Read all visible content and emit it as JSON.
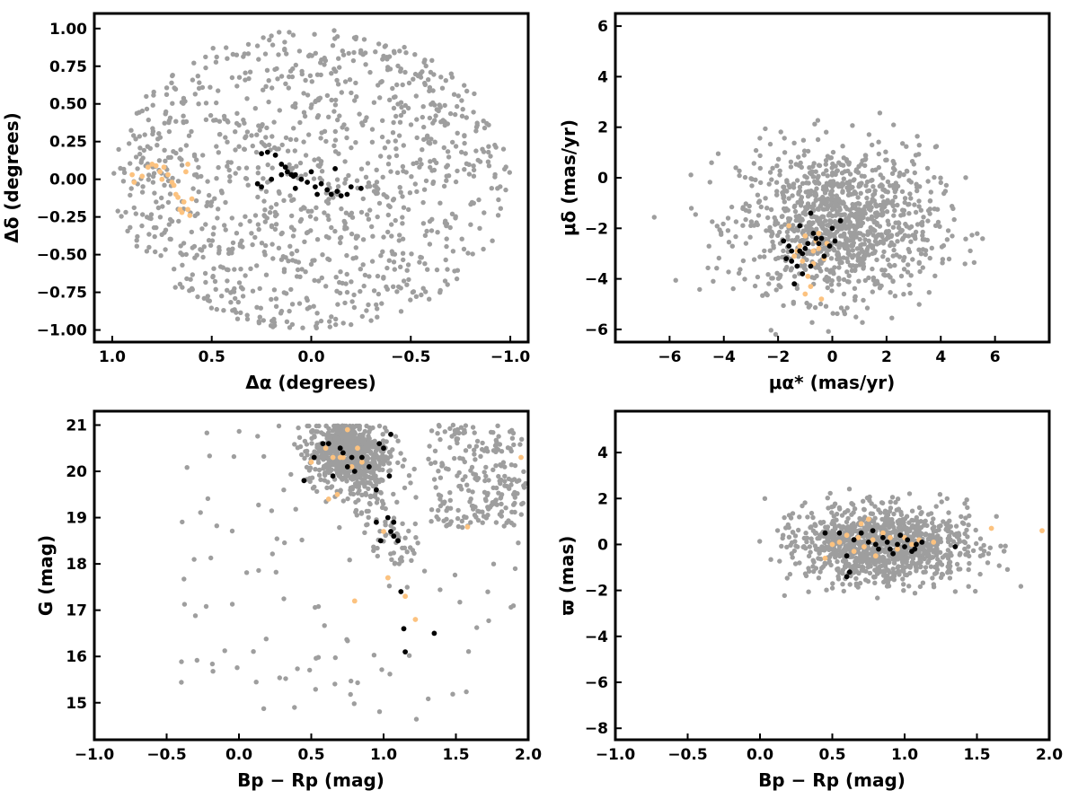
{
  "figure": {
    "colors": {
      "field": "#9e9e9e",
      "members": "#000000",
      "other": "#fcc27f"
    }
  },
  "chart_data": [
    {
      "id": "spatial",
      "type": "scatter",
      "xlabel": "Δα (degrees)",
      "ylabel": "Δδ (degrees)",
      "xlim": [
        1.09,
        -1.09
      ],
      "ylim": [
        -1.08,
        1.1
      ],
      "x_ticks": [
        1.0,
        0.5,
        0.0,
        -0.5,
        -1.0
      ],
      "x_tick_labels": [
        "1.0",
        "0.5",
        "0.0",
        "−0.5",
        "−1.0"
      ],
      "y_ticks": [
        1.0,
        0.75,
        0.5,
        0.25,
        0.0,
        -0.25,
        -0.5,
        -0.75,
        -1.0
      ],
      "y_tick_labels": [
        "1.00",
        "0.75",
        "0.50",
        "0.25",
        "0.00",
        "−0.25",
        "−0.50",
        "−0.75",
        "−1.00"
      ],
      "grid": false,
      "field_distribution": {
        "shape": "disk",
        "center": [
          0,
          0
        ],
        "radius": 1.0,
        "count": 1100
      },
      "series": [
        {
          "role": "members",
          "points": [
            [
              0.25,
              0.17
            ],
            [
              0.22,
              0.18
            ],
            [
              0.18,
              0.16
            ],
            [
              0.15,
              0.1
            ],
            [
              0.13,
              0.08
            ],
            [
              0.12,
              0.05
            ],
            [
              0.1,
              0.03
            ],
            [
              0.09,
              0.02
            ],
            [
              0.08,
              0.03
            ],
            [
              0.05,
              0.0
            ],
            [
              0.02,
              -0.02
            ],
            [
              -0.02,
              -0.05
            ],
            [
              -0.05,
              -0.03
            ],
            [
              -0.08,
              -0.07
            ],
            [
              -0.1,
              -0.1
            ],
            [
              -0.13,
              -0.08
            ],
            [
              -0.15,
              -0.11
            ],
            [
              -0.2,
              -0.05
            ],
            [
              -0.25,
              -0.06
            ],
            [
              0.27,
              -0.03
            ],
            [
              0.25,
              -0.05
            ],
            [
              0.08,
              -0.06
            ],
            [
              -0.03,
              -0.1
            ],
            [
              -0.12,
              0.07
            ],
            [
              0.0,
              0.05
            ],
            [
              0.2,
              0.0
            ],
            [
              0.15,
              0.03
            ],
            [
              -0.18,
              -0.1
            ]
          ]
        },
        {
          "role": "other",
          "points": [
            [
              0.9,
              0.03
            ],
            [
              0.89,
              -0.02
            ],
            [
              0.85,
              0.02
            ],
            [
              0.8,
              0.1
            ],
            [
              0.78,
              0.09
            ],
            [
              0.76,
              0.05
            ],
            [
              0.74,
              0.08
            ],
            [
              0.72,
              0.03
            ],
            [
              0.7,
              -0.02
            ],
            [
              0.69,
              -0.04
            ],
            [
              0.68,
              -0.1
            ],
            [
              0.67,
              -0.12
            ],
            [
              0.66,
              -0.2
            ],
            [
              0.65,
              -0.22
            ],
            [
              0.64,
              -0.15
            ],
            [
              0.62,
              -0.2
            ],
            [
              0.61,
              -0.24
            ],
            [
              0.6,
              -0.13
            ],
            [
              0.62,
              0.1
            ],
            [
              0.63,
              0.05
            ],
            [
              0.75,
              0.0
            ],
            [
              0.82,
              0.08
            ]
          ]
        }
      ]
    },
    {
      "id": "proper-motion",
      "type": "scatter",
      "xlabel": "μα* (mas/yr)",
      "ylabel": "μδ (mas/yr)",
      "xlim": [
        -8,
        8
      ],
      "ylim": [
        -6.5,
        6.5
      ],
      "x_ticks": [
        -6,
        -4,
        -2,
        0,
        2,
        4,
        6
      ],
      "x_tick_labels": [
        "−6",
        "−4",
        "−2",
        "0",
        "2",
        "4",
        "6"
      ],
      "y_ticks": [
        6,
        4,
        2,
        0,
        -2,
        -4,
        -6
      ],
      "y_tick_labels": [
        "6",
        "4",
        "2",
        "0",
        "−2",
        "−4",
        "−6"
      ],
      "grid": false,
      "field_distribution": {
        "shape": "blob",
        "center": [
          0.2,
          -1.8
        ],
        "spread": [
          1.8,
          1.5
        ],
        "count": 1100
      },
      "series": [
        {
          "role": "members",
          "points": [
            [
              -1.8,
              -2.5
            ],
            [
              -1.6,
              -2.7
            ],
            [
              -1.5,
              -3.3
            ],
            [
              -1.3,
              -3.5
            ],
            [
              -1.2,
              -2.9
            ],
            [
              -1.1,
              -3.0
            ],
            [
              -1.0,
              -2.8
            ],
            [
              -0.9,
              -2.6
            ],
            [
              -0.8,
              -1.4
            ],
            [
              -0.7,
              -2.2
            ],
            [
              -0.6,
              -2.4
            ],
            [
              -0.5,
              -2.6
            ],
            [
              -0.4,
              -2.4
            ],
            [
              -0.3,
              -3.1
            ],
            [
              -0.1,
              -2.7
            ],
            [
              0.1,
              -2.5
            ],
            [
              0.3,
              -1.7
            ],
            [
              0.0,
              -2.0
            ],
            [
              -1.4,
              -4.2
            ],
            [
              -1.1,
              -3.8
            ],
            [
              -1.7,
              -3.2
            ],
            [
              -1.2,
              -1.9
            ],
            [
              -0.8,
              -3.5
            ],
            [
              -1.5,
              -2.9
            ]
          ]
        },
        {
          "role": "other",
          "points": [
            [
              -1.6,
              -1.9
            ],
            [
              -1.3,
              -2.9
            ],
            [
              -1.1,
              -3.3
            ],
            [
              -1.0,
              -2.3
            ],
            [
              -0.9,
              -3.9
            ],
            [
              -0.8,
              -4.3
            ],
            [
              -0.7,
              -2.9
            ],
            [
              -0.6,
              -2.5
            ],
            [
              -0.5,
              -2.2
            ],
            [
              -0.4,
              -4.8
            ],
            [
              -0.3,
              -3.2
            ],
            [
              -0.2,
              -2.6
            ],
            [
              -1.2,
              -2.7
            ],
            [
              -0.7,
              -3.4
            ],
            [
              -1.4,
              -3.1
            ],
            [
              -0.5,
              -2.8
            ],
            [
              -1.0,
              -4.6
            ]
          ]
        }
      ]
    },
    {
      "id": "cmd",
      "type": "scatter",
      "xlabel": "Bp − Rp (mag)",
      "ylabel": "G (mag)",
      "xlim": [
        -1.0,
        2.0
      ],
      "ylim": [
        14.2,
        21.3
      ],
      "x_ticks": [
        -1.0,
        -0.5,
        0.0,
        0.5,
        1.0,
        1.5,
        2.0
      ],
      "x_tick_labels": [
        "−1.0",
        "−0.5",
        "0.0",
        "0.5",
        "1.0",
        "1.5",
        "2.0"
      ],
      "y_ticks": [
        21,
        20,
        19,
        18,
        17,
        16,
        15
      ],
      "y_tick_labels": [
        "21",
        "20",
        "19",
        "18",
        "17",
        "16",
        "15"
      ],
      "grid": false,
      "field_distribution": {
        "shape": "cmd",
        "turnoff": [
          0.75,
          20.4
        ],
        "count": 1100
      },
      "series": [
        {
          "role": "members",
          "points": [
            [
              0.45,
              19.8
            ],
            [
              0.52,
              20.3
            ],
            [
              0.58,
              20.6
            ],
            [
              0.62,
              20.6
            ],
            [
              0.65,
              19.9
            ],
            [
              0.7,
              20.5
            ],
            [
              0.72,
              20.4
            ],
            [
              0.75,
              20.1
            ],
            [
              0.78,
              20.3
            ],
            [
              0.8,
              20.0
            ],
            [
              0.85,
              20.3
            ],
            [
              0.9,
              20.1
            ],
            [
              0.95,
              19.6
            ],
            [
              0.97,
              20.6
            ],
            [
              1.0,
              20.5
            ],
            [
              1.04,
              19.9
            ],
            [
              1.05,
              20.8
            ],
            [
              0.95,
              18.9
            ],
            [
              0.98,
              18.5
            ],
            [
              1.03,
              19.0
            ],
            [
              1.05,
              18.7
            ],
            [
              1.07,
              18.6
            ],
            [
              1.07,
              18.9
            ],
            [
              1.1,
              18.5
            ],
            [
              1.12,
              17.4
            ],
            [
              1.14,
              16.6
            ],
            [
              1.15,
              16.1
            ],
            [
              1.35,
              16.5
            ]
          ]
        },
        {
          "role": "other",
          "points": [
            [
              0.5,
              20.2
            ],
            [
              0.6,
              20.5
            ],
            [
              0.65,
              20.3
            ],
            [
              0.68,
              19.5
            ],
            [
              0.7,
              20.3
            ],
            [
              0.72,
              20.3
            ],
            [
              0.75,
              20.9
            ],
            [
              0.78,
              20.1
            ],
            [
              0.82,
              20.5
            ],
            [
              0.85,
              20.2
            ],
            [
              0.8,
              17.2
            ],
            [
              1.0,
              18.7
            ],
            [
              1.03,
              17.7
            ],
            [
              1.15,
              17.3
            ],
            [
              1.22,
              16.8
            ],
            [
              1.58,
              18.8
            ],
            [
              1.95,
              20.3
            ],
            [
              0.62,
              19.4
            ]
          ]
        }
      ]
    },
    {
      "id": "parallax",
      "type": "scatter",
      "xlabel": "Bp − Rp (mag)",
      "ylabel": "ϖ (mas)",
      "xlim": [
        -1.0,
        2.0
      ],
      "ylim": [
        -8.5,
        5.8
      ],
      "x_ticks": [
        -1.0,
        -0.5,
        0.0,
        0.5,
        1.0,
        1.5,
        2.0
      ],
      "x_tick_labels": [
        "−1.0",
        "−0.5",
        "0.0",
        "0.5",
        "1.0",
        "1.5",
        "2.0"
      ],
      "y_ticks": [
        4,
        2,
        0,
        -2,
        -4,
        -6,
        -8
      ],
      "y_tick_labels": [
        "4",
        "2",
        "0",
        "−2",
        "−4",
        "−6",
        "−8"
      ],
      "grid": false,
      "field_distribution": {
        "shape": "blob",
        "center": [
          0.85,
          0.0
        ],
        "spread": [
          0.3,
          0.8
        ],
        "count": 1100
      },
      "series": [
        {
          "role": "members",
          "points": [
            [
              0.45,
              0.5
            ],
            [
              0.55,
              0.5
            ],
            [
              0.6,
              -0.5
            ],
            [
              0.62,
              -1.2
            ],
            [
              0.6,
              -1.4
            ],
            [
              0.65,
              0.2
            ],
            [
              0.7,
              0.5
            ],
            [
              0.75,
              0.1
            ],
            [
              0.8,
              0.0
            ],
            [
              0.82,
              -0.2
            ],
            [
              0.85,
              0.3
            ],
            [
              0.88,
              0.1
            ],
            [
              0.9,
              -0.2
            ],
            [
              0.92,
              -0.4
            ],
            [
              0.95,
              0.0
            ],
            [
              0.97,
              0.4
            ],
            [
              1.0,
              -0.1
            ],
            [
              1.02,
              0.2
            ],
            [
              1.05,
              -0.3
            ],
            [
              1.08,
              0.0
            ],
            [
              1.12,
              0.1
            ],
            [
              1.35,
              -0.1
            ],
            [
              0.78,
              0.6
            ],
            [
              1.07,
              -0.2
            ]
          ]
        },
        {
          "role": "other",
          "points": [
            [
              0.45,
              -0.6
            ],
            [
              0.55,
              0.1
            ],
            [
              0.6,
              0.4
            ],
            [
              0.65,
              -0.3
            ],
            [
              0.68,
              0.3
            ],
            [
              0.7,
              0.9
            ],
            [
              0.72,
              -0.1
            ],
            [
              0.75,
              1.1
            ],
            [
              0.78,
              0.2
            ],
            [
              0.8,
              -0.5
            ],
            [
              0.85,
              0.5
            ],
            [
              0.9,
              0.3
            ],
            [
              0.95,
              -0.2
            ],
            [
              1.0,
              0.3
            ],
            [
              1.05,
              0.0
            ],
            [
              1.1,
              0.2
            ],
            [
              1.2,
              0.1
            ],
            [
              1.6,
              0.7
            ],
            [
              1.95,
              0.6
            ],
            [
              0.5,
              0.0
            ]
          ]
        }
      ]
    }
  ]
}
